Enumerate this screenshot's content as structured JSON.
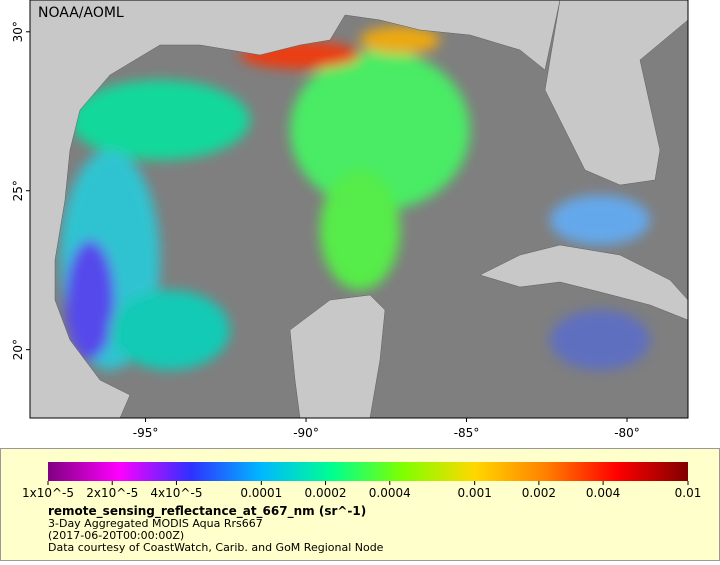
{
  "map": {
    "watermark": "NOAA/AOML",
    "xlim": [
      -98.6,
      -78.1
    ],
    "ylim": [
      17.85,
      31.0
    ],
    "xticks": [
      {
        "value": -95,
        "label": "-95°"
      },
      {
        "value": -90,
        "label": "-90°"
      },
      {
        "value": -85,
        "label": "-85°"
      },
      {
        "value": -80,
        "label": "-80°"
      }
    ],
    "yticks": [
      {
        "value": 20,
        "label": "20°"
      },
      {
        "value": 25,
        "label": "25°"
      },
      {
        "value": 30,
        "label": "30°"
      }
    ]
  },
  "colorbar": {
    "log": true,
    "lim": [
      1e-05,
      0.01
    ],
    "colors": [
      "#800080",
      "#ff00ff",
      "#3030ff",
      "#00b8ff",
      "#00ff90",
      "#80ff00",
      "#ffd800",
      "#ff8000",
      "#ff0000",
      "#800000"
    ],
    "ticks": [
      {
        "value": 1e-05,
        "label": "1x10^-5"
      },
      {
        "value": 2e-05,
        "label": "2x10^-5"
      },
      {
        "value": 4e-05,
        "label": "4x10^-5"
      },
      0.0001,
      0.0002,
      0.0004,
      0.001,
      0.002,
      0.004,
      0.01
    ]
  },
  "legend": {
    "title": "remote_sensing_reflectance_at_667_nm (sr^-1)",
    "lines": [
      "3-Day Aggregated MODIS Aqua Rrs667",
      "(2017-06-20T00:00:00Z)",
      "Data courtesy of CoastWatch, Carib. and GoM Regional Node"
    ]
  }
}
